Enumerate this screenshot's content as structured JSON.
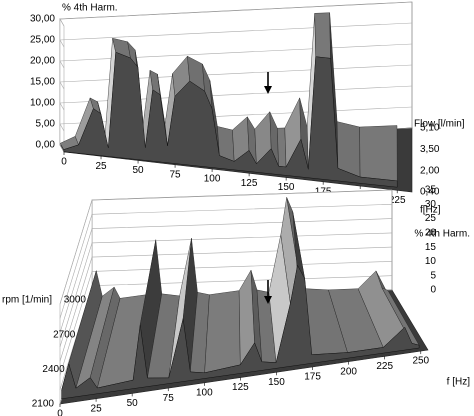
{
  "chart_data": [
    {
      "type": "surface3d",
      "zlabel": "% 4th Harm.",
      "xlabel": "f[Hz]",
      "depth_label": "Flow [l/min]",
      "x": [
        0,
        10,
        20,
        25,
        30,
        35,
        45,
        50,
        55,
        60,
        65,
        70,
        75,
        85,
        95,
        100,
        105,
        115,
        125,
        130,
        140,
        145,
        150,
        160,
        165,
        170,
        180,
        185,
        200,
        225
      ],
      "values": [
        0.5,
        2,
        11,
        10,
        2,
        25,
        24,
        22,
        3,
        17,
        16,
        4,
        16,
        20,
        18,
        14,
        3,
        2,
        5,
        2,
        6,
        2,
        2,
        9,
        2,
        29,
        29,
        3,
        1.5,
        1.5
      ],
      "xlim": [
        0,
        235
      ],
      "xticks": [
        0,
        25,
        50,
        75,
        100,
        125,
        150,
        175,
        200,
        225
      ],
      "ylim": [
        0,
        30
      ],
      "yticks": [
        {
          "value": 0,
          "label": "0,00"
        },
        {
          "value": 5,
          "label": "5,00"
        },
        {
          "value": 10,
          "label": "10,00"
        },
        {
          "value": 15,
          "label": "15,00"
        },
        {
          "value": 20,
          "label": "20,00"
        },
        {
          "value": 25,
          "label": "25,00"
        },
        {
          "value": 30,
          "label": "30,00"
        }
      ],
      "depth_ticks": [
        {
          "value": 5.1,
          "label": "5,10"
        },
        {
          "value": 3.5,
          "label": "3,50"
        },
        {
          "value": 2,
          "label": "2,00"
        },
        {
          "value": 0.4,
          "label": "0,40"
        }
      ],
      "grid": true
    },
    {
      "type": "surface3d",
      "zlabel": "% 4th Harm.",
      "xlabel": "f [Hz]",
      "depth_label": "rpm [1/min]",
      "x": [
        0,
        5,
        10,
        20,
        25,
        50,
        55,
        60,
        75,
        85,
        90,
        100,
        125,
        135,
        140,
        150,
        160,
        165,
        170,
        175,
        200,
        225,
        240,
        245,
        250
      ],
      "values": [
        3,
        12,
        3,
        6,
        2,
        3,
        22,
        3,
        2,
        22,
        3,
        2,
        3,
        10,
        3,
        2,
        22,
        35,
        30,
        3,
        2,
        2,
        8,
        2,
        1
      ],
      "xlim": [
        0,
        255
      ],
      "xticks": [
        0,
        25,
        50,
        75,
        100,
        125,
        150,
        175,
        200,
        225,
        250
      ],
      "ylim": [
        0,
        35
      ],
      "yticks": [
        0,
        5,
        10,
        15,
        20,
        25,
        30,
        35
      ],
      "depth_ticks": [
        3000,
        2700,
        2400,
        2100
      ],
      "grid": true
    }
  ]
}
